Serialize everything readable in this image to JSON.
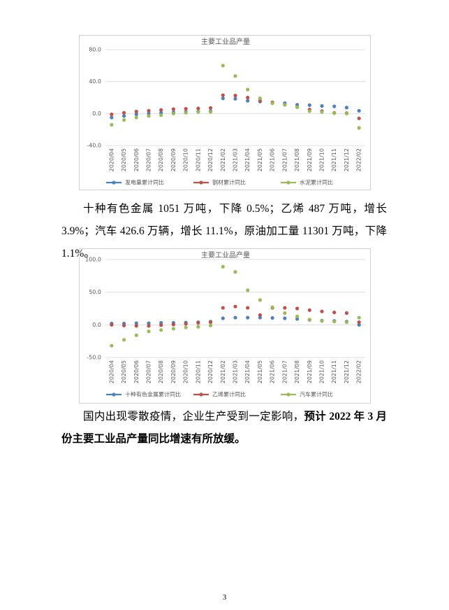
{
  "chart_data": [
    {
      "type": "line",
      "title": "主要工业品产量",
      "categories": [
        "2020/04",
        "2020/05",
        "2020/06",
        "2020/07",
        "2020/08",
        "2020/09",
        "2020/10",
        "2020/11",
        "2020/12",
        "2021/02",
        "2021/03",
        "2021/04",
        "2021/05",
        "2021/06",
        "2021/07",
        "2021/08",
        "2021/09",
        "2021/10",
        "2021/11",
        "2021/12",
        "2022/02"
      ],
      "series": [
        {
          "name": "发电量累计同比",
          "color": "#4f81bd",
          "values": [
            -5,
            -3,
            -1,
            0,
            1,
            1.5,
            2,
            2.5,
            3,
            19,
            18.5,
            16,
            15,
            14,
            13,
            11,
            10.5,
            9.5,
            9,
            7.5,
            3.5
          ]
        },
        {
          "name": "钢材累计同比",
          "color": "#c0504d",
          "values": [
            -1,
            1,
            2.5,
            3.5,
            4.5,
            5.5,
            6,
            6.5,
            7,
            23,
            22.5,
            20,
            16,
            14,
            11,
            8,
            5,
            3,
            1,
            0.5,
            -6
          ]
        },
        {
          "name": "水泥累计同比",
          "color": "#9bbb59",
          "values": [
            -14,
            -8,
            -5,
            -3,
            -2,
            0,
            1,
            2,
            2,
            60,
            47,
            30,
            19,
            13,
            11,
            8,
            3,
            2,
            0.5,
            0,
            -18
          ]
        }
      ],
      "ylim": [
        -40,
        80
      ],
      "yticks": [
        {
          "value": -40,
          "label": "-40.0"
        },
        {
          "value": 0,
          "label": "0.0"
        },
        {
          "value": 40,
          "label": "40.0"
        },
        {
          "value": 80,
          "label": "80.0"
        }
      ],
      "grid": true,
      "legend": "bottom"
    },
    {
      "type": "line",
      "title": "主要工业品产量",
      "categories": [
        "2020/04",
        "2020/05",
        "2020/06",
        "2020/07",
        "2020/08",
        "2020/09",
        "2020/10",
        "2020/11",
        "2020/12",
        "2021/02",
        "2021/03",
        "2021/04",
        "2021/05",
        "2021/06",
        "2021/07",
        "2021/08",
        "2021/09",
        "2021/10",
        "2021/11",
        "2021/12",
        "2022/02"
      ],
      "series": [
        {
          "name": "十种有色金属累计同比",
          "color": "#4f81bd",
          "values": [
            2,
            2,
            2.5,
            2.5,
            3,
            3,
            3.5,
            4,
            5,
            10,
            11,
            11,
            11,
            10.5,
            10,
            9,
            7.5,
            6.5,
            6,
            5,
            0
          ]
        },
        {
          "name": "乙烯累计同比",
          "color": "#c0504d",
          "values": [
            0,
            -1,
            -1.5,
            -1.5,
            -0.5,
            0.5,
            1.5,
            3,
            4,
            26,
            28,
            26,
            15,
            26,
            26,
            25,
            22.5,
            20.5,
            19,
            18,
            4
          ]
        },
        {
          "name": "汽车累计同比",
          "color": "#9bbb59",
          "values": [
            -32,
            -23,
            -16,
            -10,
            -8,
            -6,
            -4,
            -3,
            -1,
            89,
            81,
            53,
            38,
            27,
            18,
            13,
            8,
            6,
            5,
            4,
            11
          ]
        }
      ],
      "ylim": [
        -50,
        100
      ],
      "yticks": [
        {
          "value": -50,
          "label": "-50.0"
        },
        {
          "value": 0,
          "label": "0.0"
        },
        {
          "value": 50,
          "label": "50.0"
        },
        {
          "value": 100,
          "label": "100.0"
        }
      ],
      "grid": true,
      "legend": "bottom"
    }
  ],
  "document": {
    "paragraphs": [
      {
        "text": "十种有色金属 1051 万吨，下降 0.5%；乙烯 487 万吨，增长 3.9%；汽车 426.6 万辆，增长 11.1%，原油加工量 11301 万吨，下降 1.1%。"
      },
      {
        "text": "国内出现零散疫情，企业生产受到一定影响，",
        "bold": "预计 2022 年 3 月份主要工业品产量同比增速有所放缓。"
      }
    ],
    "page_number": 3
  }
}
